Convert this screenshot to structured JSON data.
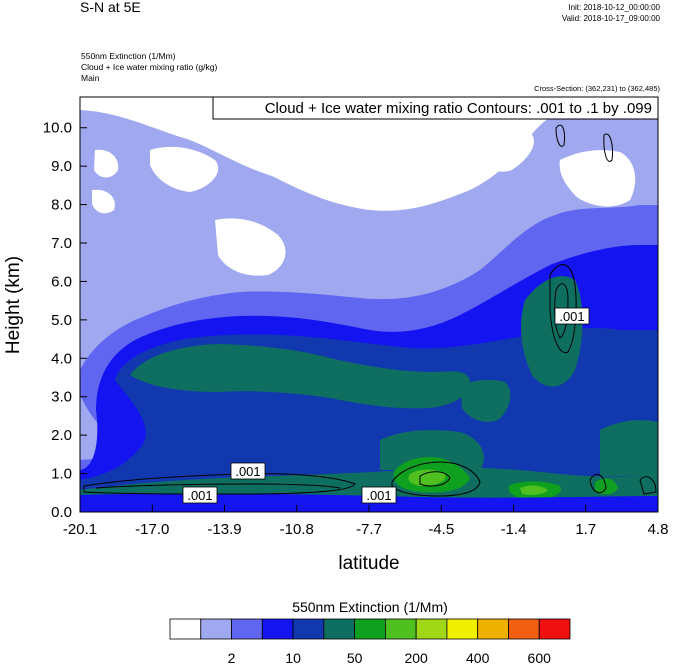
{
  "header": {
    "title": "S-N at 5E",
    "init": "Init: 2018-10-12_00:00:00",
    "valid": "Valid: 2018-10-17_09:00:00",
    "fields": [
      "550nm Extinction   (1/Mm)",
      "Cloud + Ice water mixing ratio   (g/kg)",
      "Main"
    ],
    "cross_section": "Cross-Section: (362,231) to (362,485)"
  },
  "chart_data": {
    "type": "contour",
    "contour_label": "Cloud + Ice water mixing ratio Contours: .001 to .1 by .099",
    "xlabel": "latitude",
    "ylabel": "Height (km)",
    "xlim": [
      -20.1,
      4.8
    ],
    "ylim": [
      0.0,
      10.8
    ],
    "x_ticks": [
      "-20.1",
      "-17.0",
      "-13.9",
      "-10.8",
      "-7.7",
      "-4.5",
      "-1.4",
      "1.7",
      "4.8"
    ],
    "y_ticks": [
      "0.0",
      "1.0",
      "2.0",
      "3.0",
      "4.0",
      "5.0",
      "6.0",
      "7.0",
      "8.0",
      "9.0",
      "10.0"
    ],
    "contour_values": [
      ".001",
      ".001",
      ".001",
      ".001"
    ],
    "colorbar": {
      "title": "550nm Extinction  (1/Mm)",
      "labels": [
        "2",
        "10",
        "50",
        "200",
        "400",
        "600"
      ],
      "colors": [
        "#ffffff",
        "#a0a8f0",
        "#6066f0",
        "#1414f0",
        "#1238b0",
        "#0e6e60",
        "#10a020",
        "#50c020",
        "#a0d818",
        "#f0f000",
        "#f0b000",
        "#f06010",
        "#f01010"
      ]
    }
  }
}
